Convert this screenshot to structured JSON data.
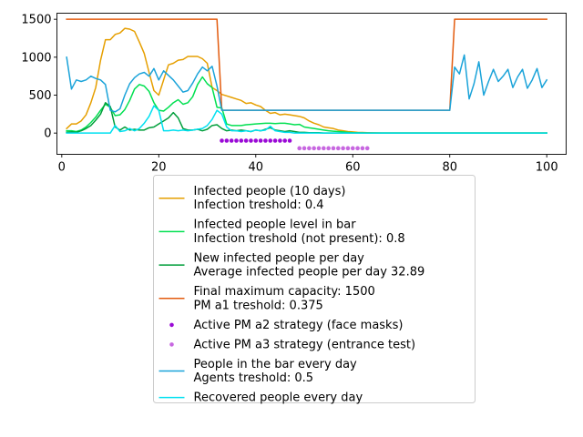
{
  "chart_data": {
    "type": "line",
    "xlim": [
      -1,
      104
    ],
    "ylim": [
      -280,
      1580
    ],
    "x_ticks": [
      0,
      20,
      40,
      60,
      80,
      100
    ],
    "y_ticks": [
      0,
      500,
      1000,
      1500
    ],
    "grid": false,
    "legend_location": "below plot",
    "series": [
      {
        "kind": "line",
        "color": "#e69f00",
        "legend_lines": [
          "Infected people (10 days)",
          "Infection treshold: 0.4"
        ],
        "x": [
          1,
          2,
          3,
          4,
          5,
          6,
          7,
          8,
          9,
          10,
          11,
          12,
          13,
          14,
          15,
          16,
          17,
          18,
          19,
          20,
          21,
          22,
          23,
          24,
          25,
          26,
          27,
          28,
          29,
          30,
          31,
          32,
          33,
          34,
          35,
          36,
          37,
          38,
          39,
          40,
          41,
          42,
          43,
          44,
          45,
          46,
          47,
          48,
          49,
          50,
          51,
          52,
          53,
          54,
          55,
          56,
          57,
          58,
          59,
          60,
          61,
          62,
          63,
          64,
          65,
          66,
          67,
          68,
          100
        ],
        "y": [
          60,
          120,
          120,
          160,
          240,
          400,
          600,
          960,
          1230,
          1230,
          1300,
          1320,
          1380,
          1370,
          1340,
          1200,
          1050,
          800,
          560,
          500,
          700,
          900,
          920,
          960,
          970,
          1010,
          1010,
          1010,
          980,
          920,
          600,
          560,
          510,
          490,
          470,
          450,
          430,
          390,
          400,
          370,
          350,
          300,
          260,
          270,
          240,
          250,
          240,
          230,
          220,
          200,
          160,
          130,
          110,
          80,
          70,
          60,
          40,
          30,
          20,
          15,
          10,
          8,
          5,
          3,
          2,
          1,
          0,
          0,
          0
        ]
      },
      {
        "kind": "line",
        "color": "#00e050",
        "legend_lines": [
          "Infected people level in bar",
          "Infection treshold (not present): 0.8"
        ],
        "x": [
          1,
          2,
          3,
          4,
          5,
          6,
          7,
          8,
          9,
          10,
          11,
          12,
          13,
          14,
          15,
          16,
          17,
          18,
          19,
          20,
          21,
          22,
          23,
          24,
          25,
          26,
          27,
          28,
          29,
          30,
          31,
          32,
          33,
          34,
          35,
          36,
          37,
          38,
          39,
          40,
          41,
          42,
          43,
          44,
          45,
          46,
          47,
          48,
          49,
          50,
          51,
          52,
          53,
          54,
          55,
          56,
          57,
          58,
          59,
          60,
          61,
          62,
          63,
          64,
          65,
          66,
          67,
          68,
          100
        ],
        "y": [
          30,
          30,
          20,
          40,
          80,
          140,
          210,
          300,
          380,
          340,
          230,
          240,
          310,
          430,
          580,
          640,
          620,
          550,
          400,
          300,
          290,
          340,
          400,
          440,
          380,
          400,
          480,
          640,
          740,
          650,
          600,
          340,
          330,
          120,
          100,
          100,
          100,
          110,
          115,
          120,
          125,
          130,
          130,
          125,
          130,
          130,
          120,
          110,
          115,
          80,
          70,
          60,
          50,
          40,
          30,
          25,
          20,
          15,
          10,
          5,
          3,
          2,
          1,
          0,
          0,
          0,
          0,
          0,
          0
        ]
      },
      {
        "kind": "line",
        "color": "#009e3a",
        "legend_lines": [
          "New infected people per day",
          "Average infected people per day 32.89"
        ],
        "x": [
          1,
          2,
          3,
          4,
          5,
          6,
          7,
          8,
          9,
          10,
          11,
          12,
          13,
          14,
          15,
          16,
          17,
          18,
          19,
          20,
          21,
          22,
          23,
          24,
          25,
          26,
          27,
          28,
          29,
          30,
          31,
          32,
          33,
          34,
          35,
          36,
          37,
          38,
          39,
          40,
          41,
          42,
          43,
          44,
          45,
          46,
          47,
          48,
          49,
          50,
          51,
          52,
          53,
          54,
          55,
          56,
          57,
          58,
          59,
          60,
          100
        ],
        "y": [
          10,
          15,
          10,
          30,
          60,
          100,
          170,
          250,
          400,
          350,
          80,
          40,
          80,
          40,
          50,
          40,
          40,
          70,
          80,
          120,
          160,
          200,
          270,
          200,
          60,
          40,
          40,
          50,
          30,
          50,
          100,
          110,
          60,
          30,
          40,
          30,
          40,
          30,
          20,
          40,
          30,
          50,
          70,
          40,
          30,
          20,
          30,
          20,
          10,
          10,
          5,
          5,
          5,
          0,
          0,
          0,
          0,
          0,
          0,
          0,
          0
        ]
      },
      {
        "kind": "line",
        "color": "#e35b0e",
        "legend_lines": [
          "Final maximum capacity: 1500",
          "PM a1 treshold: 0.375"
        ],
        "x": [
          1,
          32,
          33,
          80,
          81,
          100
        ],
        "y": [
          1500,
          1500,
          300,
          300,
          1500,
          1500
        ]
      },
      {
        "kind": "dots",
        "color": "#9a0ad6",
        "legend_lines": [
          "Active PM a2 strategy (face masks)"
        ],
        "x": [
          33,
          34,
          35,
          36,
          37,
          38,
          39,
          40,
          41,
          42,
          43,
          44,
          45,
          46,
          47
        ],
        "y": [
          -100,
          -100,
          -100,
          -100,
          -100,
          -100,
          -100,
          -100,
          -100,
          -100,
          -100,
          -100,
          -100,
          -100,
          -100
        ]
      },
      {
        "kind": "dots",
        "color": "#c767e0",
        "legend_lines": [
          "Active PM a3 strategy (entrance test)"
        ],
        "x": [
          49,
          50,
          51,
          52,
          53,
          54,
          55,
          56,
          57,
          58,
          59,
          60,
          61,
          62,
          63
        ],
        "y": [
          -200,
          -200,
          -200,
          -200,
          -200,
          -200,
          -200,
          -200,
          -200,
          -200,
          -200,
          -200,
          -200,
          -200,
          -200
        ]
      },
      {
        "kind": "line",
        "color": "#1aa3d9",
        "legend_lines": [
          "People in the bar every day",
          "Agents treshold: 0.5"
        ],
        "x": [
          1,
          2,
          3,
          4,
          5,
          6,
          7,
          8,
          9,
          10,
          11,
          12,
          13,
          14,
          15,
          16,
          17,
          18,
          19,
          20,
          21,
          22,
          23,
          24,
          25,
          26,
          27,
          28,
          29,
          30,
          31,
          32,
          33,
          80,
          81,
          82,
          83,
          84,
          85,
          86,
          87,
          88,
          89,
          90,
          91,
          92,
          93,
          94,
          95,
          96,
          97,
          98,
          99,
          100
        ],
        "y": [
          1000,
          580,
          700,
          680,
          700,
          750,
          720,
          700,
          640,
          300,
          280,
          320,
          500,
          650,
          730,
          780,
          800,
          750,
          850,
          700,
          820,
          760,
          700,
          620,
          540,
          560,
          660,
          780,
          870,
          820,
          880,
          620,
          300,
          300,
          870,
          780,
          1030,
          450,
          650,
          940,
          500,
          680,
          840,
          680,
          750,
          840,
          600,
          740,
          840,
          590,
          700,
          850,
          600,
          700
        ]
      },
      {
        "kind": "line",
        "color": "#00e0f0",
        "legend_lines": [
          "Recovered people every day"
        ],
        "x": [
          1,
          9,
          10,
          11,
          12,
          13,
          14,
          15,
          16,
          17,
          18,
          19,
          20,
          21,
          22,
          23,
          24,
          25,
          26,
          27,
          28,
          29,
          30,
          31,
          32,
          33,
          34,
          35,
          36,
          37,
          38,
          39,
          40,
          41,
          42,
          43,
          44,
          45,
          46,
          47,
          48,
          100
        ],
        "y": [
          0,
          0,
          0,
          100,
          20,
          30,
          60,
          30,
          60,
          130,
          220,
          360,
          300,
          30,
          30,
          40,
          30,
          40,
          30,
          40,
          50,
          60,
          100,
          180,
          300,
          250,
          80,
          30,
          30,
          20,
          30,
          20,
          40,
          30,
          40,
          90,
          30,
          20,
          10,
          10,
          0,
          0
        ]
      }
    ]
  }
}
